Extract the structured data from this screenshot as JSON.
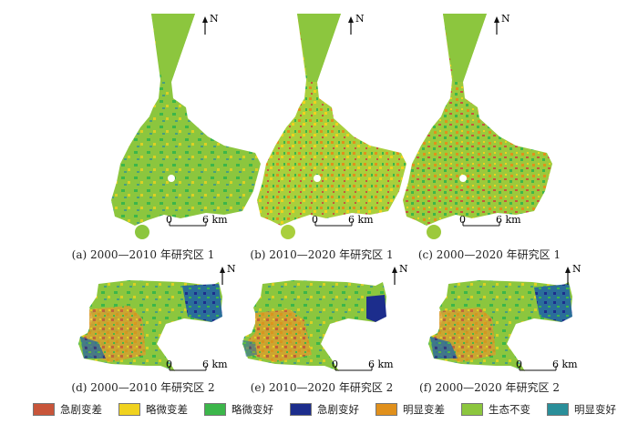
{
  "panels": [
    {
      "caption": "(a) 2000—2010 年研究区 1",
      "scale_label": "6 km",
      "scale_zero": "0",
      "north": "N"
    },
    {
      "caption": "(b) 2010—2020 年研究区 1",
      "scale_label": "6 km",
      "scale_zero": "0",
      "north": "N"
    },
    {
      "caption": "(c) 2000—2020 年研究区 1",
      "scale_label": "6 km",
      "scale_zero": "0",
      "north": "N"
    },
    {
      "caption": "(d) 2000—2010 年研究区 2",
      "scale_label": "6 km",
      "scale_zero": "0",
      "north": "N"
    },
    {
      "caption": "(e) 2010—2020 年研究区 2",
      "scale_label": "6 km",
      "scale_zero": "0",
      "north": "N"
    },
    {
      "caption": "(f) 2000—2020 年研究区 2",
      "scale_label": "6 km",
      "scale_zero": "0",
      "north": "N"
    }
  ],
  "legend": [
    {
      "label": "急剧变差",
      "color": "#c8553a"
    },
    {
      "label": "略微变差",
      "color": "#f0d21e"
    },
    {
      "label": "略微变好",
      "color": "#3cb64a"
    },
    {
      "label": "急剧变好",
      "color": "#1c2d8c"
    },
    {
      "label": "明显变差",
      "color": "#e0901c"
    },
    {
      "label": "生态不变",
      "color": "#8cc63e"
    },
    {
      "label": "明显变好",
      "color": "#2a8f9a"
    }
  ]
}
